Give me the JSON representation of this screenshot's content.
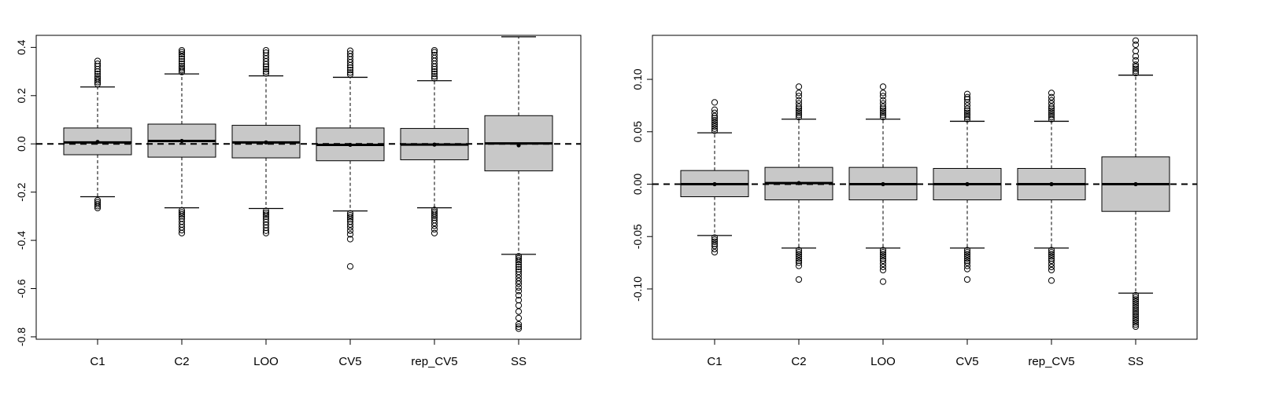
{
  "colors": {
    "box_fill": "#c8c8c8",
    "stroke": "#000000",
    "background": "#ffffff"
  },
  "chart_data": [
    {
      "type": "boxplot",
      "title": "",
      "xlabel": "",
      "ylabel": "",
      "categories": [
        "C1",
        "C2",
        "LOO",
        "CV5",
        "rep_CV5",
        "SS"
      ],
      "ylim": [
        -0.81,
        0.45
      ],
      "yticks": [
        -0.8,
        -0.6,
        -0.4,
        -0.2,
        0.0,
        0.2,
        0.4
      ],
      "ytick_labels": [
        "-0.8",
        "-0.6",
        "-0.4",
        "-0.2",
        "0.0",
        "0.2",
        "0.4"
      ],
      "reference_line": 0.0,
      "boxes": [
        {
          "name": "C1",
          "q1": -0.045,
          "median": 0.006,
          "q3": 0.066,
          "whisker_low": -0.219,
          "whisker_high": 0.236,
          "mean": 0.008,
          "outliers_high": [
            0.248,
            0.256,
            0.264,
            0.272,
            0.28,
            0.29,
            0.3,
            0.31,
            0.322,
            0.332,
            0.344
          ],
          "outliers_low": [
            -0.234,
            -0.242,
            -0.25,
            -0.258,
            -0.266
          ]
        },
        {
          "name": "C2",
          "q1": -0.055,
          "median": 0.012,
          "q3": 0.082,
          "whisker_low": -0.265,
          "whisker_high": 0.29,
          "mean": 0.012,
          "outliers_high": [
            0.298,
            0.306,
            0.314,
            0.322,
            0.332,
            0.342,
            0.352,
            0.362,
            0.372,
            0.38,
            0.388
          ],
          "outliers_low": [
            -0.276,
            -0.284,
            -0.292,
            -0.3,
            -0.31,
            -0.322,
            -0.334,
            -0.346,
            -0.358,
            -0.37
          ]
        },
        {
          "name": "LOO",
          "q1": -0.058,
          "median": 0.006,
          "q3": 0.077,
          "whisker_low": -0.268,
          "whisker_high": 0.282,
          "mean": 0.006,
          "outliers_high": [
            0.292,
            0.3,
            0.31,
            0.32,
            0.33,
            0.342,
            0.354,
            0.366,
            0.378,
            0.388
          ],
          "outliers_low": [
            -0.278,
            -0.286,
            -0.294,
            -0.302,
            -0.312,
            -0.324,
            -0.336,
            -0.348,
            -0.36,
            -0.37
          ]
        },
        {
          "name": "CV5",
          "q1": -0.07,
          "median": -0.004,
          "q3": 0.066,
          "whisker_low": -0.278,
          "whisker_high": 0.276,
          "mean": -0.004,
          "outliers_high": [
            0.288,
            0.296,
            0.306,
            0.316,
            0.326,
            0.338,
            0.35,
            0.362,
            0.374,
            0.386
          ],
          "outliers_low": [
            -0.288,
            -0.296,
            -0.304,
            -0.312,
            -0.322,
            -0.334,
            -0.346,
            -0.36,
            -0.375,
            -0.395,
            -0.508
          ]
        },
        {
          "name": "rep_CV5",
          "q1": -0.066,
          "median": -0.003,
          "q3": 0.064,
          "whisker_low": -0.265,
          "whisker_high": 0.262,
          "mean": -0.003,
          "outliers_high": [
            0.272,
            0.28,
            0.29,
            0.3,
            0.31,
            0.32,
            0.332,
            0.344,
            0.356,
            0.368,
            0.38,
            0.388
          ],
          "outliers_low": [
            -0.274,
            -0.282,
            -0.29,
            -0.298,
            -0.306,
            -0.316,
            -0.328,
            -0.34,
            -0.354,
            -0.37
          ]
        },
        {
          "name": "SS",
          "q1": -0.112,
          "median": 0.002,
          "q3": 0.117,
          "whisker_low": -0.458,
          "whisker_high": 0.444,
          "mean": -0.006,
          "outliers_high": [],
          "outliers_low": [
            -0.466,
            -0.474,
            -0.482,
            -0.49,
            -0.5,
            -0.51,
            -0.52,
            -0.53,
            -0.542,
            -0.555,
            -0.568,
            -0.58,
            -0.595,
            -0.61,
            -0.628,
            -0.648,
            -0.67,
            -0.695,
            -0.722,
            -0.748,
            -0.758,
            -0.766
          ]
        }
      ]
    },
    {
      "type": "boxplot",
      "title": "",
      "xlabel": "",
      "ylabel": "",
      "categories": [
        "C1",
        "C2",
        "LOO",
        "CV5",
        "rep_CV5",
        "SS"
      ],
      "ylim": [
        -0.148,
        0.142
      ],
      "yticks": [
        -0.1,
        -0.05,
        0.0,
        0.05,
        0.1
      ],
      "ytick_labels": [
        "-0.10",
        "-0.05",
        "0.00",
        "0.05",
        "0.10"
      ],
      "reference_line": 0.0,
      "boxes": [
        {
          "name": "C1",
          "q1": -0.012,
          "median": 0.0,
          "q3": 0.013,
          "whisker_low": -0.049,
          "whisker_high": 0.049,
          "mean": 0.0,
          "outliers_high": [
            0.051,
            0.053,
            0.055,
            0.057,
            0.059,
            0.061,
            0.063,
            0.065,
            0.068,
            0.071,
            0.078
          ],
          "outliers_low": [
            -0.051,
            -0.053,
            -0.055,
            -0.057,
            -0.059,
            -0.062,
            -0.065
          ]
        },
        {
          "name": "C2",
          "q1": -0.015,
          "median": 0.001,
          "q3": 0.016,
          "whisker_low": -0.061,
          "whisker_high": 0.062,
          "mean": 0.001,
          "outliers_high": [
            0.064,
            0.066,
            0.068,
            0.07,
            0.072,
            0.074,
            0.077,
            0.08,
            0.084,
            0.087,
            0.093
          ],
          "outliers_low": [
            -0.063,
            -0.065,
            -0.067,
            -0.069,
            -0.071,
            -0.073,
            -0.075,
            -0.078,
            -0.091
          ]
        },
        {
          "name": "LOO",
          "q1": -0.015,
          "median": 0.0,
          "q3": 0.016,
          "whisker_low": -0.061,
          "whisker_high": 0.062,
          "mean": 0.0,
          "outliers_high": [
            0.064,
            0.066,
            0.068,
            0.07,
            0.072,
            0.074,
            0.077,
            0.08,
            0.084,
            0.087,
            0.093
          ],
          "outliers_low": [
            -0.063,
            -0.065,
            -0.067,
            -0.069,
            -0.071,
            -0.073,
            -0.076,
            -0.079,
            -0.082,
            -0.093
          ]
        },
        {
          "name": "CV5",
          "q1": -0.015,
          "median": 0.0,
          "q3": 0.015,
          "whisker_low": -0.061,
          "whisker_high": 0.06,
          "mean": 0.0,
          "outliers_high": [
            0.062,
            0.064,
            0.066,
            0.068,
            0.07,
            0.072,
            0.075,
            0.078,
            0.081,
            0.083,
            0.086
          ],
          "outliers_low": [
            -0.063,
            -0.065,
            -0.067,
            -0.069,
            -0.071,
            -0.073,
            -0.075,
            -0.078,
            -0.081,
            -0.091
          ]
        },
        {
          "name": "rep_CV5",
          "q1": -0.015,
          "median": 0.0,
          "q3": 0.015,
          "whisker_low": -0.061,
          "whisker_high": 0.06,
          "mean": 0.0,
          "outliers_high": [
            0.062,
            0.064,
            0.066,
            0.068,
            0.07,
            0.072,
            0.074,
            0.077,
            0.08,
            0.083,
            0.087
          ],
          "outliers_low": [
            -0.063,
            -0.065,
            -0.067,
            -0.069,
            -0.071,
            -0.073,
            -0.076,
            -0.079,
            -0.082,
            -0.092
          ]
        },
        {
          "name": "SS",
          "q1": -0.026,
          "median": 0.0,
          "q3": 0.026,
          "whisker_low": -0.104,
          "whisker_high": 0.104,
          "mean": 0.0,
          "outliers_high": [
            0.106,
            0.108,
            0.11,
            0.112,
            0.114,
            0.118,
            0.122,
            0.127,
            0.133,
            0.137
          ],
          "outliers_low": [
            -0.106,
            -0.108,
            -0.11,
            -0.112,
            -0.114,
            -0.116,
            -0.118,
            -0.12,
            -0.122,
            -0.124,
            -0.126,
            -0.128,
            -0.13,
            -0.132,
            -0.134,
            -0.136
          ]
        }
      ]
    }
  ]
}
